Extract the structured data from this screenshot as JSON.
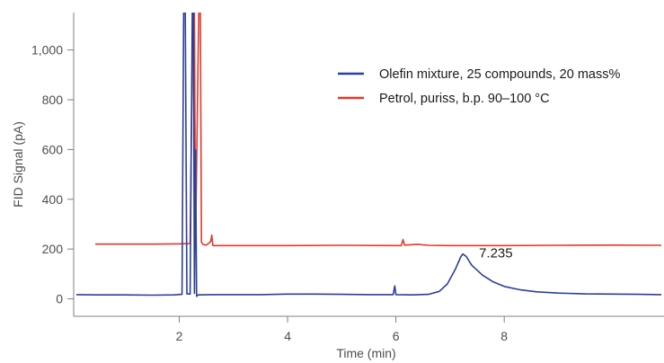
{
  "chart_data": {
    "type": "line",
    "title": "",
    "xlabel": "Time (min)",
    "ylabel": "FID Signal (pA)",
    "xlim": [
      0.05,
      10.95
    ],
    "ylim": [
      -70,
      1150
    ],
    "xticks": [
      {
        "value": 2,
        "label": "2"
      },
      {
        "value": 4,
        "label": "4"
      },
      {
        "value": 6,
        "label": "6"
      },
      {
        "value": 8,
        "label": "8"
      }
    ],
    "yticks": [
      {
        "value": 0,
        "label": "0"
      },
      {
        "value": 200,
        "label": "200"
      },
      {
        "value": 400,
        "label": "400"
      },
      {
        "value": 600,
        "label": "600"
      },
      {
        "value": 800,
        "label": "800"
      },
      {
        "value": 1000,
        "label": "1,000"
      }
    ],
    "grid": false,
    "legend_position": "top-right",
    "series": [
      {
        "name": "Olefin mixture, 25 compounds, 20 mass%",
        "color": "#2b3f9b",
        "points": [
          [
            0.1,
            17
          ],
          [
            0.5,
            16
          ],
          [
            1.0,
            16
          ],
          [
            1.5,
            15
          ],
          [
            1.9,
            16
          ],
          [
            2.05,
            18
          ],
          [
            2.08,
            1150
          ],
          [
            2.11,
            1150
          ],
          [
            2.14,
            20
          ],
          [
            2.2,
            19
          ],
          [
            2.24,
            1150
          ],
          [
            2.26,
            1150
          ],
          [
            2.28,
            22
          ],
          [
            2.3,
            598
          ],
          [
            2.32,
            10
          ],
          [
            2.35,
            16
          ],
          [
            2.6,
            17
          ],
          [
            3.0,
            17
          ],
          [
            3.5,
            17
          ],
          [
            4.0,
            19
          ],
          [
            4.5,
            19
          ],
          [
            5.0,
            18
          ],
          [
            5.5,
            17
          ],
          [
            5.95,
            17
          ],
          [
            5.98,
            52
          ],
          [
            6.0,
            17
          ],
          [
            6.3,
            16
          ],
          [
            6.6,
            18
          ],
          [
            6.8,
            30
          ],
          [
            6.95,
            60
          ],
          [
            7.1,
            120
          ],
          [
            7.2,
            170
          ],
          [
            7.235,
            180
          ],
          [
            7.3,
            170
          ],
          [
            7.4,
            135
          ],
          [
            7.6,
            95
          ],
          [
            7.8,
            68
          ],
          [
            8.0,
            50
          ],
          [
            8.3,
            36
          ],
          [
            8.6,
            28
          ],
          [
            9.0,
            23
          ],
          [
            9.5,
            20
          ],
          [
            10.0,
            19
          ],
          [
            10.5,
            18
          ],
          [
            10.9,
            17
          ]
        ]
      },
      {
        "name": "Petrol, puriss, b.p. 90–100 °C",
        "color": "#e03a2c",
        "points": [
          [
            0.45,
            220
          ],
          [
            1.0,
            220
          ],
          [
            1.5,
            220
          ],
          [
            2.0,
            221
          ],
          [
            2.2,
            222
          ],
          [
            2.25,
            1150
          ],
          [
            2.28,
            1150
          ],
          [
            2.3,
            224
          ],
          [
            2.36,
            1150
          ],
          [
            2.39,
            1150
          ],
          [
            2.41,
            228
          ],
          [
            2.44,
            218
          ],
          [
            2.5,
            216
          ],
          [
            2.58,
            230
          ],
          [
            2.6,
            256
          ],
          [
            2.62,
            214
          ],
          [
            3.0,
            214
          ],
          [
            4.0,
            214
          ],
          [
            5.0,
            215
          ],
          [
            6.0,
            214
          ],
          [
            6.1,
            214
          ],
          [
            6.13,
            238
          ],
          [
            6.16,
            216
          ],
          [
            6.4,
            219
          ],
          [
            6.6,
            215
          ],
          [
            7.0,
            214
          ],
          [
            8.0,
            214
          ],
          [
            9.0,
            215
          ],
          [
            10.0,
            216
          ],
          [
            10.9,
            215
          ]
        ]
      }
    ],
    "annotations": [
      {
        "text": "7.235",
        "x": 7.235,
        "y": 180
      }
    ]
  }
}
